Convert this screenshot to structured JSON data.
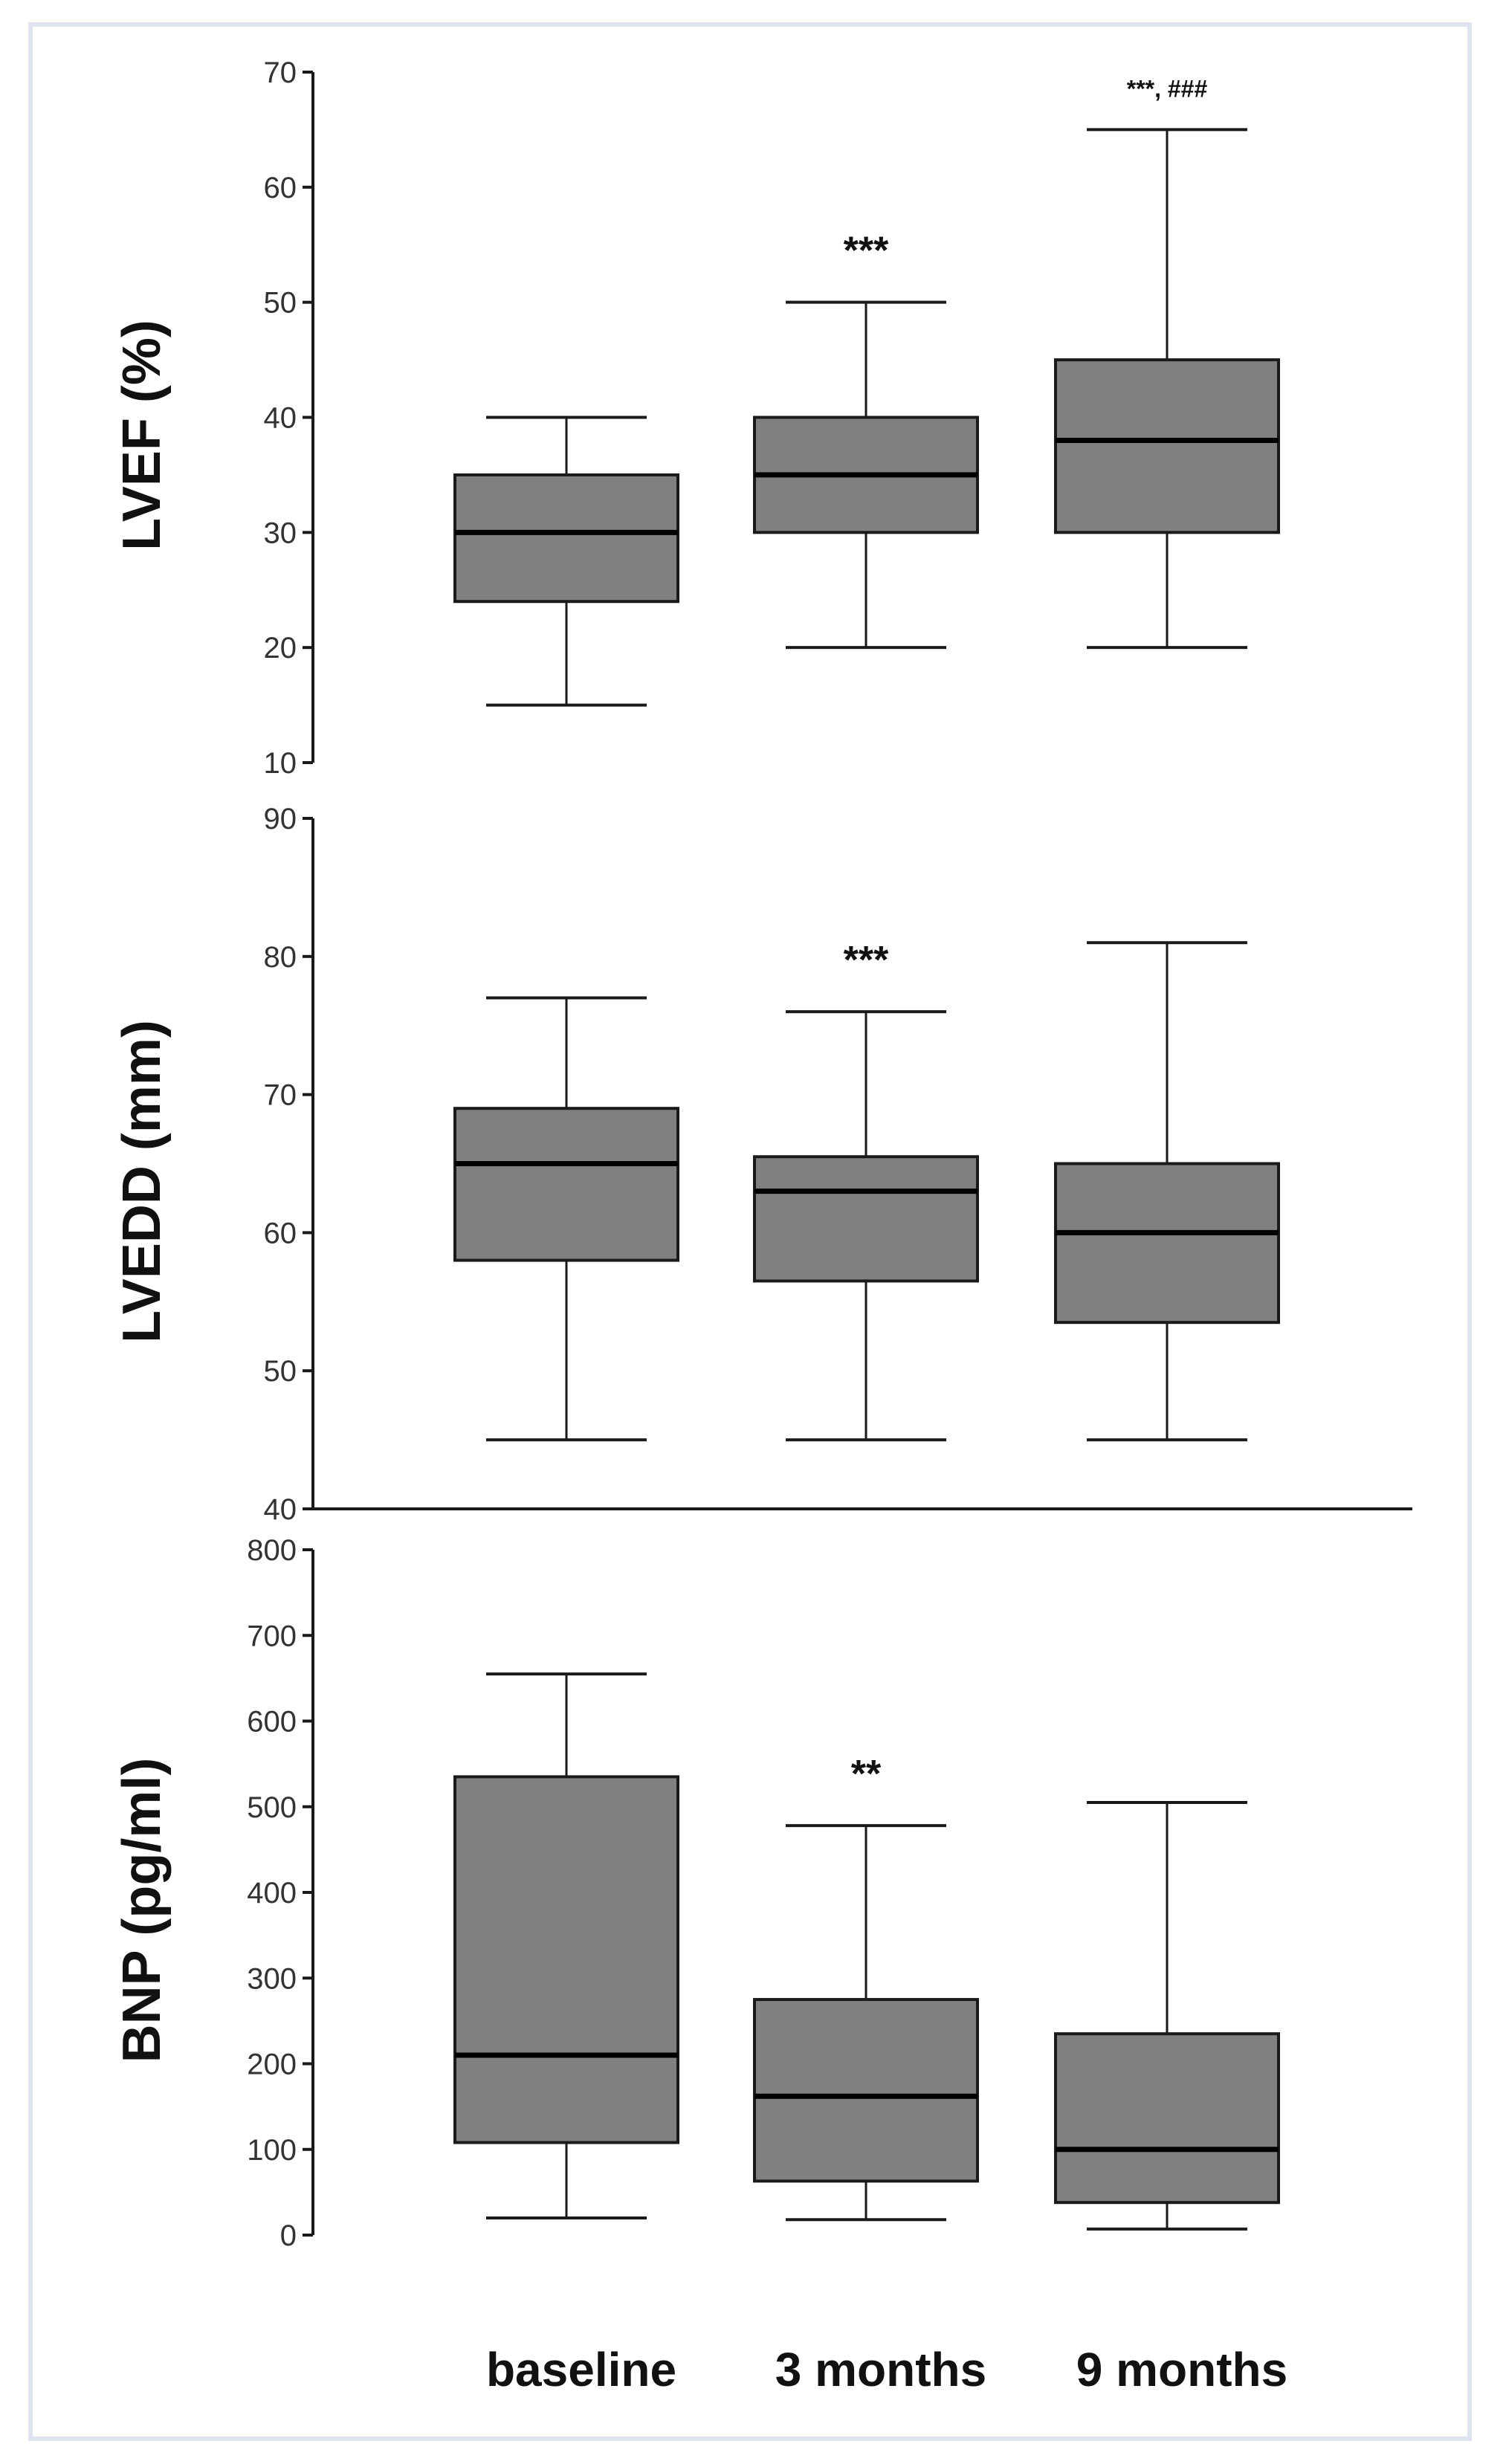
{
  "chart_data": [
    {
      "type": "box",
      "ylabel": "LVEF (%)",
      "ylim": [
        10,
        70
      ],
      "yticks": [
        10,
        20,
        30,
        40,
        50,
        60,
        70
      ],
      "categories": [
        "baseline",
        "3 months",
        "9 months"
      ],
      "boxes": [
        {
          "min": 15,
          "q1": 24,
          "median": 30,
          "q3": 35,
          "max": 40,
          "annotation": ""
        },
        {
          "min": 20,
          "q1": 30,
          "median": 35,
          "q3": 40,
          "max": 50,
          "annotation": "***"
        },
        {
          "min": 20,
          "q1": 30,
          "median": 38,
          "q3": 45,
          "max": 65,
          "annotation": "***, ###"
        }
      ]
    },
    {
      "type": "box",
      "ylabel": "LVEDD (mm)",
      "ylim": [
        40,
        90
      ],
      "yticks": [
        40,
        50,
        60,
        70,
        80,
        90
      ],
      "categories": [
        "baseline",
        "3 months",
        "9 months"
      ],
      "boxes": [
        {
          "min": 45,
          "q1": 58,
          "median": 65,
          "q3": 69,
          "max": 77,
          "annotation": ""
        },
        {
          "min": 45,
          "q1": 56.5,
          "median": 63,
          "q3": 65.5,
          "max": 76,
          "annotation": "***"
        },
        {
          "min": 45,
          "q1": 53.5,
          "median": 60,
          "q3": 65,
          "max": 81,
          "annotation": ""
        }
      ]
    },
    {
      "type": "box",
      "ylabel": "BNP (pg/ml)",
      "ylim": [
        0,
        800
      ],
      "yticks": [
        0,
        100,
        200,
        300,
        400,
        500,
        600,
        700,
        800
      ],
      "categories": [
        "baseline",
        "3 months",
        "9 months"
      ],
      "boxes": [
        {
          "min": 20,
          "q1": 108,
          "median": 210,
          "q3": 535,
          "max": 655,
          "annotation": ""
        },
        {
          "min": 18,
          "q1": 63,
          "median": 162,
          "q3": 275,
          "max": 478,
          "annotation": "**"
        },
        {
          "min": 7,
          "q1": 38,
          "median": 100,
          "q3": 235,
          "max": 505,
          "annotation": ""
        }
      ]
    }
  ],
  "x_axis": {
    "categories": [
      "baseline",
      "3 months",
      "9 months"
    ]
  }
}
